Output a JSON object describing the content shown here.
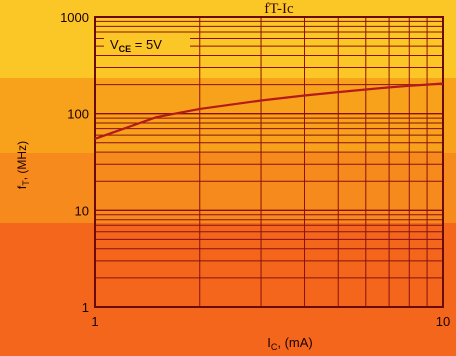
{
  "chart_data": {
    "type": "line",
    "title": "fT-Ic",
    "xlabel": "I_C, (mA)",
    "ylabel": "f_T, (MHz)",
    "x_scale": "log",
    "y_scale": "log",
    "xlim": [
      1,
      10
    ],
    "ylim": [
      1,
      1000
    ],
    "x_ticks": [
      {
        "value": 1,
        "label": "1"
      },
      {
        "value": 10,
        "label": "10"
      }
    ],
    "y_ticks": [
      {
        "value": 1,
        "label": "1"
      },
      {
        "value": 10,
        "label": "10"
      },
      {
        "value": 100,
        "label": "100"
      },
      {
        "value": 1000,
        "label": "1000"
      }
    ],
    "grid": true,
    "annotation": "V_CE = 5V",
    "series": [
      {
        "x": [
          1,
          1.5,
          2,
          3,
          4,
          5,
          6,
          7,
          8,
          9,
          10
        ],
        "y": [
          55,
          92,
          112,
          137,
          154,
          167,
          178,
          187,
          194,
          200,
          205
        ]
      }
    ],
    "colors": {
      "line": "#b51a1a",
      "grid": "#8a1010"
    }
  }
}
